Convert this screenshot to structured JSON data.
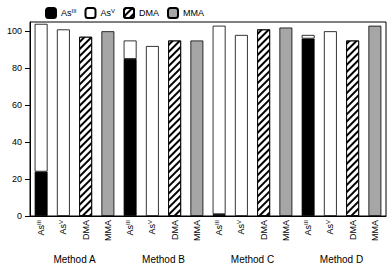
{
  "chart_data": {
    "type": "bar",
    "stacked": true,
    "grid": false,
    "legend": "top-left",
    "categories": [
      "AsIII",
      "AsV",
      "DMA",
      "MMA",
      "AsIII",
      "AsV",
      "DMA",
      "MMA",
      "AsIII",
      "AsV",
      "DMA",
      "MMA",
      "AsIII",
      "AsV",
      "DMA",
      "MMA"
    ],
    "groups": [
      "Method A",
      "Method B",
      "Method C",
      "Method D"
    ],
    "ylim": [
      0,
      105
    ],
    "yticks": [
      0,
      20,
      40,
      60,
      80,
      100
    ],
    "series": [
      {
        "name": "AsIII",
        "color": "#000000",
        "values": [
          24,
          null,
          null,
          null,
          85,
          null,
          null,
          null,
          1,
          null,
          null,
          null,
          96,
          null,
          null,
          null
        ]
      },
      {
        "name": "AsV",
        "color": "#ffffff",
        "values": [
          80,
          101,
          null,
          null,
          10,
          92,
          null,
          null,
          102,
          98,
          null,
          null,
          2,
          100,
          null,
          null
        ]
      },
      {
        "name": "DMA",
        "color": "#ffffff",
        "marker": "hatch",
        "values": [
          null,
          null,
          97,
          null,
          null,
          null,
          95,
          null,
          null,
          null,
          101,
          null,
          null,
          null,
          95,
          null
        ]
      },
      {
        "name": "MMA",
        "color": "#a6a6a6",
        "values": [
          null,
          null,
          null,
          100,
          null,
          null,
          null,
          95,
          null,
          null,
          null,
          102,
          null,
          null,
          null,
          103
        ]
      }
    ]
  }
}
